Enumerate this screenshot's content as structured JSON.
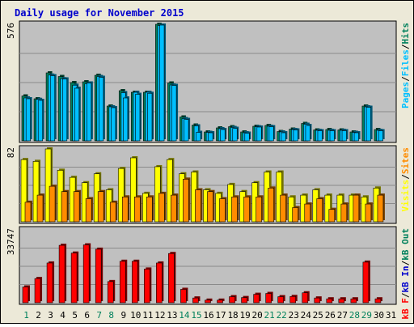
{
  "colors": {
    "frame": "#ece9d8",
    "panel": "#c0c0c0",
    "grid": "#8a8a8a",
    "title": "#0000cc",
    "axis_text": "#000000",
    "weekend": "#00805c",
    "hits": "#00805c",
    "files": "#00bfff",
    "pages": "#00bfff",
    "visits": "#ffff00",
    "sites": "#ff8c00",
    "kb_f": "#ff0000",
    "kb_in": "#0000cc",
    "kb_out": "#00805c"
  },
  "chart_data": [
    {
      "type": "bar",
      "title": "Daily usage for November 2015",
      "panel": "hits-files-pages",
      "ymax_label": "576",
      "ylim": [
        0,
        576
      ],
      "legend": [
        "Pages",
        "/",
        "Files",
        "/",
        "Hits"
      ],
      "x": [
        "1",
        "2",
        "3",
        "4",
        "5",
        "6",
        "7",
        "8",
        "9",
        "10",
        "11",
        "12",
        "13",
        "14",
        "15",
        "16",
        "17",
        "18",
        "19",
        "20",
        "21",
        "22",
        "23",
        "24",
        "25",
        "26",
        "27",
        "28",
        "29",
        "30",
        "31"
      ],
      "weekend_days": [
        "1",
        "7",
        "8",
        "14",
        "15",
        "21",
        "22",
        "28",
        "29"
      ],
      "series": [
        {
          "name": "Hits",
          "values": [
            222,
            208,
            336,
            318,
            288,
            292,
            324,
            172,
            248,
            240,
            240,
            576,
            286,
            118,
            78,
            44,
            64,
            70,
            44,
            72,
            76,
            46,
            58,
            86,
            54,
            56,
            54,
            44,
            172,
            56,
            0
          ]
        },
        {
          "name": "Files",
          "values": [
            212,
            205,
            325,
            307,
            275,
            282,
            318,
            168,
            238,
            240,
            240,
            570,
            276,
            110,
            74,
            42,
            60,
            66,
            40,
            70,
            72,
            44,
            56,
            82,
            52,
            52,
            52,
            42,
            168,
            52,
            0
          ]
        },
        {
          "name": "Pages",
          "values": [
            208,
            200,
            322,
            306,
            260,
            286,
            314,
            164,
            212,
            230,
            235,
            572,
            274,
            106,
            42,
            40,
            56,
            62,
            38,
            68,
            70,
            40,
            54,
            76,
            50,
            50,
            50,
            40,
            166,
            50,
            0
          ]
        }
      ]
    },
    {
      "type": "bar",
      "panel": "visits-sites",
      "ymax_label": "82",
      "ylim": [
        0,
        82
      ],
      "legend": [
        "Visits",
        "/",
        "Sites"
      ],
      "x": [
        "1",
        "2",
        "3",
        "4",
        "5",
        "6",
        "7",
        "8",
        "9",
        "10",
        "11",
        "12",
        "13",
        "14",
        "15",
        "16",
        "17",
        "18",
        "19",
        "20",
        "21",
        "22",
        "23",
        "24",
        "25",
        "26",
        "27",
        "28",
        "29",
        "30",
        "31"
      ],
      "series": [
        {
          "name": "Visits",
          "values": [
            70,
            68,
            82,
            58,
            50,
            44,
            54,
            36,
            60,
            72,
            32,
            62,
            70,
            54,
            56,
            36,
            32,
            42,
            34,
            44,
            56,
            56,
            28,
            30,
            36,
            30,
            30,
            30,
            28,
            38,
            0
          ]
        },
        {
          "name": "Sites",
          "values": [
            22,
            30,
            40,
            34,
            34,
            26,
            34,
            22,
            28,
            28,
            28,
            32,
            30,
            48,
            36,
            34,
            26,
            28,
            28,
            28,
            38,
            30,
            16,
            20,
            26,
            14,
            20,
            30,
            20,
            30,
            0
          ]
        }
      ]
    },
    {
      "type": "bar",
      "panel": "kb",
      "ymax_label": "33747",
      "ylim": [
        0,
        33747
      ],
      "legend": [
        "kB F",
        "/",
        "kB In",
        "/",
        "kB Out"
      ],
      "x": [
        "1",
        "2",
        "3",
        "4",
        "5",
        "6",
        "7",
        "8",
        "9",
        "10",
        "11",
        "12",
        "13",
        "14",
        "15",
        "16",
        "17",
        "18",
        "19",
        "20",
        "21",
        "22",
        "23",
        "24",
        "25",
        "26",
        "27",
        "28",
        "29",
        "30",
        "31"
      ],
      "series": [
        {
          "name": "kB F",
          "values": [
            7300,
            11200,
            18400,
            26600,
            23000,
            26800,
            24800,
            9800,
            19200,
            19200,
            15600,
            18400,
            22800,
            6200,
            2200,
            1200,
            1200,
            2800,
            2400,
            3900,
            4300,
            2800,
            2900,
            4600,
            2200,
            1800,
            1800,
            1800,
            18800,
            1800,
            0
          ]
        }
      ]
    }
  ]
}
